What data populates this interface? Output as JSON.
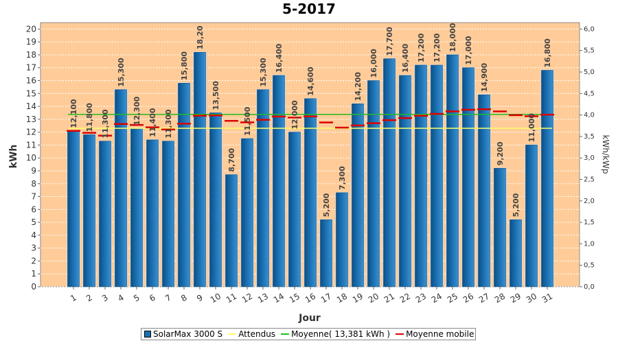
{
  "chart_data": {
    "type": "bar",
    "title": "5-2017",
    "xlabel": "Jour",
    "ylabel": "kWh",
    "ylabel_right": "kWh/kWp",
    "ylim": [
      0,
      20.5
    ],
    "ylim_right": [
      0,
      6.15
    ],
    "yticks": [
      "0",
      "1",
      "2",
      "3",
      "4",
      "5",
      "6",
      "7",
      "8",
      "9",
      "10",
      "11",
      "12",
      "13",
      "14",
      "15",
      "16",
      "17",
      "18",
      "19",
      "20"
    ],
    "yticks_right": [
      "0,0",
      "0,5",
      "1,0",
      "1,5",
      "2,0",
      "2,5",
      "3,0",
      "3,5",
      "4,0",
      "4,5",
      "5,0",
      "5,5",
      "6,0"
    ],
    "categories": [
      "1",
      "2",
      "3",
      "4",
      "5",
      "6",
      "7",
      "8",
      "9",
      "10",
      "11",
      "12",
      "13",
      "14",
      "15",
      "16",
      "17",
      "18",
      "19",
      "20",
      "21",
      "22",
      "23",
      "24",
      "25",
      "26",
      "27",
      "28",
      "29",
      "30",
      "31"
    ],
    "background": "#ffcc99",
    "series": [
      {
        "name": "SolarMax 3000 S",
        "type": "bar",
        "color": "#1a6fb0",
        "values": [
          12.1,
          11.8,
          11.3,
          15.3,
          12.3,
          11.4,
          11.3,
          15.8,
          18.2,
          13.5,
          8.7,
          11.5,
          15.3,
          16.4,
          12.0,
          14.6,
          5.2,
          7.3,
          14.2,
          16.0,
          17.7,
          16.4,
          17.2,
          17.2,
          18.0,
          17.0,
          14.9,
          9.2,
          5.2,
          11.0,
          16.8
        ],
        "labels": [
          "12,100",
          "11,800",
          "11,300",
          "15,300",
          "12,300",
          "11,400",
          "11,300",
          "15,800",
          "18,20",
          "13,500",
          "8,700",
          "11,500",
          "15,300",
          "16,400",
          "12,000",
          "14,600",
          "5,200",
          "7,300",
          "14,200",
          "16,000",
          "17,700",
          "16,400",
          "17,200",
          "17,200",
          "18,000",
          "17,000",
          "14,900",
          "9,200",
          "5,200",
          "11,000",
          "16,800"
        ]
      },
      {
        "name": "Attendus",
        "type": "line",
        "color": "#ffff66",
        "value": 12.3
      },
      {
        "name": "Moyenne( 13,381 kWh )",
        "type": "line",
        "color": "#22bb22",
        "value": 13.381
      },
      {
        "name": "Moyenne mobile",
        "type": "line",
        "color": "#dd0000",
        "values": [
          12.1,
          11.95,
          11.73,
          12.63,
          12.56,
          12.37,
          12.21,
          12.66,
          13.28,
          13.3,
          12.88,
          12.76,
          12.96,
          13.21,
          13.13,
          13.22,
          12.75,
          12.35,
          12.52,
          12.69,
          12.93,
          13.09,
          13.27,
          13.42,
          13.61,
          13.74,
          13.78,
          13.61,
          13.32,
          13.24,
          13.36
        ]
      }
    ],
    "legend_position": "bottom"
  }
}
